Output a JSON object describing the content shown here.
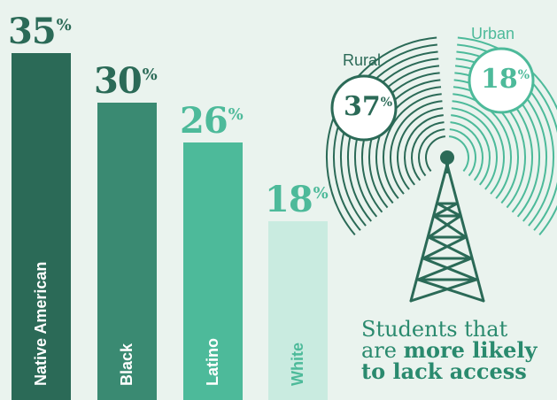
{
  "chart_data": [
    {
      "type": "bar",
      "categories": [
        "Native American",
        "Black",
        "Latino",
        "White"
      ],
      "values": [
        35,
        30,
        26,
        18
      ],
      "value_suffix": "%",
      "ylim": [
        0,
        35
      ],
      "colors": {
        "Native American": "#2b6a57",
        "Black": "#3a8a72",
        "Latino": "#4dba9a",
        "White": "#c9ebe0"
      },
      "label_colors": {
        "Native American": "#ffffff",
        "Black": "#ffffff",
        "Latino": "#ffffff",
        "White": "#4dba9a"
      },
      "value_colors": {
        "Native American": "#2b6a57",
        "Black": "#2b6a57",
        "Latino": "#4dba9a",
        "White": "#4dba9a"
      }
    },
    {
      "type": "bubble",
      "categories": [
        "Rural",
        "Urban"
      ],
      "values": [
        37,
        18
      ],
      "value_suffix": "%",
      "colors": {
        "Rural": "#2b6a57",
        "Urban": "#4dba9a"
      }
    }
  ],
  "caption": {
    "line1": "Students that",
    "line2_plain": "are ",
    "line2_bold": "more likely",
    "line3_bold": "to lack access"
  },
  "icon": "cell-tower-icon"
}
